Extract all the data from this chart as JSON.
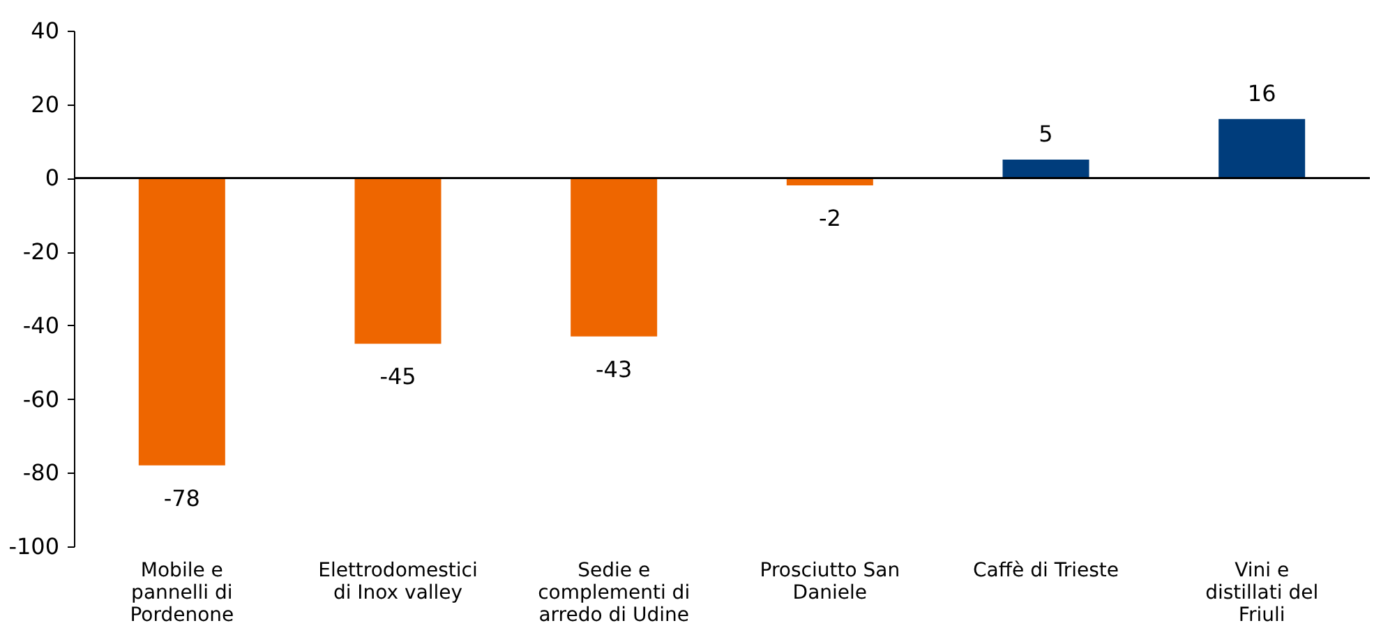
{
  "chart_data": {
    "type": "bar",
    "categories": [
      "Mobile e pannelli di Pordenone",
      "Elettrodomestici di Inox valley",
      "Sedie e complementi di arredo di Udine",
      "Prosciutto San Daniele",
      "Caffè di Trieste",
      "Vini e distillati del Friuli"
    ],
    "values": [
      -78,
      -45,
      -43,
      -2,
      5,
      16
    ],
    "colors": [
      "#ee6600",
      "#ee6600",
      "#ee6600",
      "#ee6600",
      "#003d7c",
      "#003d7c"
    ],
    "ylim": [
      -100,
      40
    ],
    "yticks": [
      -100,
      -80,
      -60,
      -40,
      -20,
      0,
      20,
      40
    ],
    "data_labels": true
  }
}
